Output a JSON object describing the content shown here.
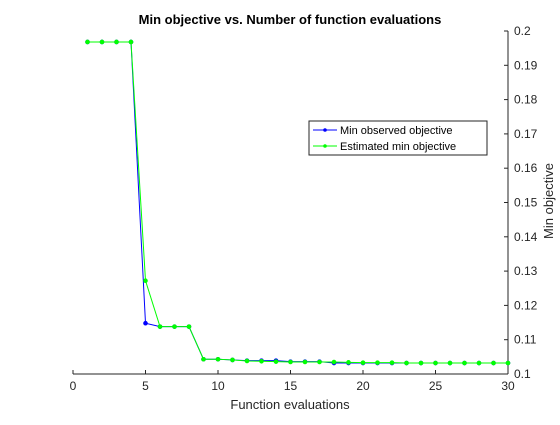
{
  "chart_data": {
    "type": "line",
    "title": "Min objective vs. Number of function evaluations",
    "xlabel": "Function evaluations",
    "ylabel": "Min objective",
    "xlim": [
      0,
      30
    ],
    "ylim": [
      0.1,
      0.2
    ],
    "xticks": [
      0,
      5,
      10,
      15,
      20,
      25,
      30
    ],
    "yticks": [
      0.1,
      0.11,
      0.12,
      0.13,
      0.14,
      0.15,
      0.16,
      0.17,
      0.18,
      0.19,
      0.2
    ],
    "y_axis_location": "right",
    "grid": false,
    "legend_position": "top-right",
    "series": [
      {
        "name": "Min observed objective",
        "color": "#0000ff",
        "x": [
          1,
          2,
          3,
          4,
          5,
          6,
          7,
          8,
          9,
          10,
          11,
          12,
          13,
          14,
          15,
          16,
          17,
          18,
          19,
          20,
          21,
          22,
          23,
          24,
          25,
          26,
          27,
          28,
          29,
          30
        ],
        "y": [
          0.1968,
          0.1968,
          0.1968,
          0.1968,
          0.1148,
          0.1138,
          0.1138,
          0.1138,
          0.1043,
          0.1043,
          0.1041,
          0.1039,
          0.1039,
          0.1039,
          0.1036,
          0.1036,
          0.1036,
          0.1032,
          0.1032,
          0.1032,
          0.1032,
          0.1032,
          0.1032,
          0.1032,
          0.1032,
          0.1032,
          0.1032,
          0.1032,
          0.1032,
          0.1032
        ]
      },
      {
        "name": "Estimated min objective",
        "color": "#00ff00",
        "x": [
          1,
          2,
          3,
          4,
          5,
          6,
          7,
          8,
          9,
          10,
          11,
          12,
          13,
          14,
          15,
          16,
          17,
          18,
          19,
          20,
          21,
          22,
          23,
          24,
          25,
          26,
          27,
          28,
          29,
          30
        ],
        "y": [
          0.1968,
          0.1968,
          0.1968,
          0.1968,
          0.1272,
          0.1138,
          0.1138,
          0.1138,
          0.1043,
          0.1043,
          0.1041,
          0.1038,
          0.1037,
          0.1036,
          0.1035,
          0.1035,
          0.1035,
          0.1035,
          0.1034,
          0.1033,
          0.1033,
          0.1033,
          0.1032,
          0.1032,
          0.1032,
          0.1032,
          0.1032,
          0.1032,
          0.1032,
          0.1032
        ]
      }
    ]
  }
}
